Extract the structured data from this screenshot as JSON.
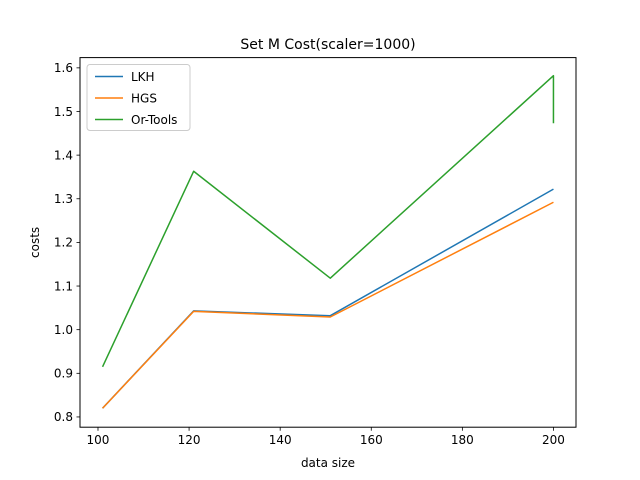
{
  "chart_data": {
    "type": "line",
    "title": "Set M Cost(scaler=1000)",
    "xlabel": "data size",
    "ylabel": "costs",
    "xlim": [
      96.05,
      204.95
    ],
    "ylim": [
      0.7765,
      1.6235
    ],
    "xticks": [
      100,
      120,
      140,
      160,
      180,
      200
    ],
    "yticks": [
      0.8,
      0.9,
      1.0,
      1.1,
      1.2,
      1.3,
      1.4,
      1.5,
      1.6
    ],
    "xtick_labels": [
      "100",
      "120",
      "140",
      "160",
      "180",
      "200"
    ],
    "ytick_labels": [
      "0.8",
      "0.9",
      "1.0",
      "1.1",
      "1.2",
      "1.3",
      "1.4",
      "1.5",
      "1.6"
    ],
    "grid": false,
    "legend_position": "upper-left",
    "series": [
      {
        "name": "LKH",
        "color": "#1f77b4",
        "x": [
          101,
          121,
          151,
          200
        ],
        "y": [
          0.82,
          1.043,
          1.032,
          1.322
        ]
      },
      {
        "name": "HGS",
        "color": "#ff7f0e",
        "x": [
          101,
          121,
          151,
          200
        ],
        "y": [
          0.82,
          1.042,
          1.029,
          1.292
        ]
      },
      {
        "name": "Or-Tools",
        "color": "#2ca02c",
        "x": [
          101,
          121,
          151,
          200,
          200
        ],
        "y": [
          0.915,
          1.363,
          1.118,
          1.582,
          1.473
        ]
      }
    ]
  }
}
